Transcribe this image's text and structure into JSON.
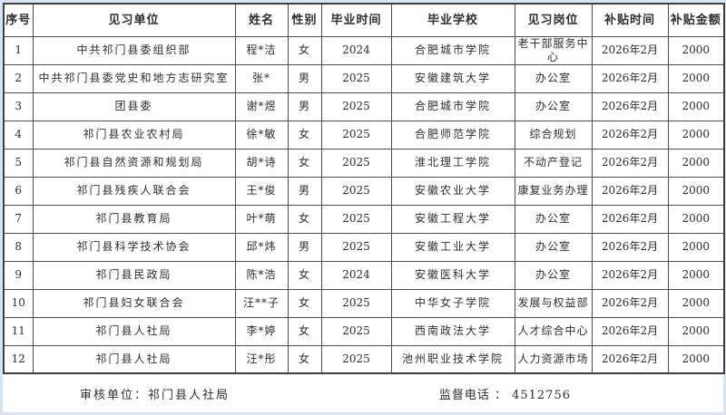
{
  "colors": {
    "page_background": "#d7e3f1",
    "panel_background": "#ffffff",
    "grid_border": "#4c4c4c",
    "outer_border": "#3f3f3f",
    "text": "#2d2d2d"
  },
  "table": {
    "headers": [
      "序号",
      "见习单位",
      "姓名",
      "性别",
      "毕业时间",
      "毕业学校",
      "见习岗位",
      "补贴时间",
      "补贴金额"
    ],
    "rows": [
      [
        "1",
        "中共祁门县委组织部",
        "程*洁",
        "女",
        "2024",
        "合肥城市学院",
        "老干部服务中心",
        "2026年2月",
        "2000"
      ],
      [
        "2",
        "中共祁门县委党史和地方志研究室",
        "张*",
        "男",
        "2025",
        "安徽建筑大学",
        "办公室",
        "2026年2月",
        "2000"
      ],
      [
        "3",
        "团县委",
        "谢*煜",
        "男",
        "2025",
        "合肥城市学院",
        "办公室",
        "2026年2月",
        "2000"
      ],
      [
        "4",
        "祁门县农业农村局",
        "徐*敏",
        "女",
        "2025",
        "合肥师范学院",
        "综合规划",
        "2026年2月",
        "2000"
      ],
      [
        "5",
        "祁门县自然资源和规划局",
        "胡*诗",
        "女",
        "2025",
        "淮北理工学院",
        "不动产登记",
        "2026年2月",
        "2000"
      ],
      [
        "6",
        "祁门县残疾人联合会",
        "王*俊",
        "男",
        "2025",
        "安徽农业大学",
        "康复业务办理",
        "2026年2月",
        "2000"
      ],
      [
        "7",
        "祁门县教育局",
        "叶*萌",
        "女",
        "2025",
        "安徽工程大学",
        "办公室",
        "2026年2月",
        "2000"
      ],
      [
        "8",
        "祁门县科学技术协会",
        "邱*炜",
        "男",
        "2025",
        "安徽工业大学",
        "办公室",
        "2026年2月",
        "2000"
      ],
      [
        "9",
        "祁门县民政局",
        "陈*浩",
        "女",
        "2024",
        "安徽医科大学",
        "办公室",
        "2026年2月",
        "2000"
      ],
      [
        "10",
        "祁门县妇女联合会",
        "汪**子",
        "女",
        "2025",
        "中华女子学院",
        "发展与权益部",
        "2026年2月",
        "2000"
      ],
      [
        "11",
        "祁门县人社局",
        "李*婷",
        "女",
        "2025",
        "西南政法大学",
        "人才综合中心",
        "2026年2月",
        "2000"
      ],
      [
        "12",
        "祁门县人社局",
        "汪*彤",
        "女",
        "2025",
        "池州职业技术学院",
        "人力资源市场",
        "2026年2月",
        "2000"
      ]
    ]
  },
  "footer": {
    "audit_text": "审核单位：祁门县人社局",
    "phone_text": "监督电话 ：  4512756"
  }
}
